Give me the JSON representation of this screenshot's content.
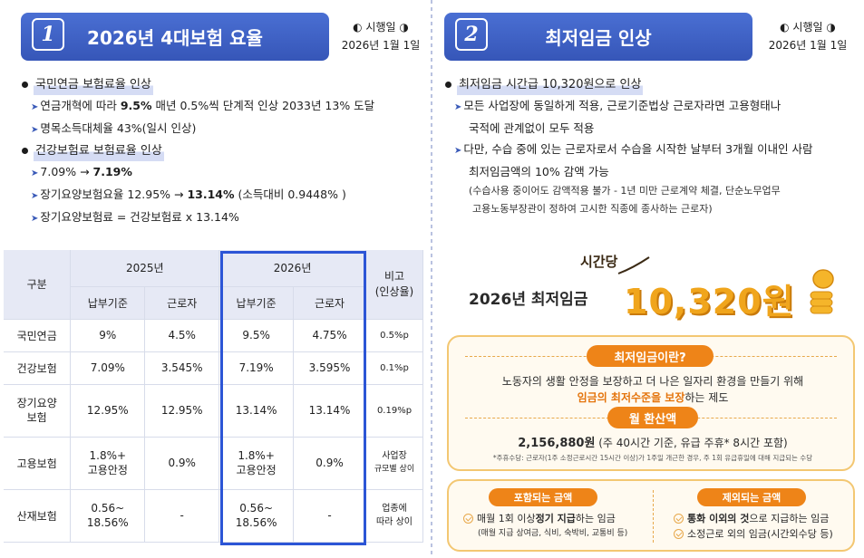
{
  "left": {
    "number": "1",
    "title": "2026년 4대보험 요율",
    "effective_label": "◐ 시행일 ◑",
    "effective_date": "2026년 1월 1일",
    "bullets": [
      {
        "text": "국민연금 보험료율 인상",
        "subs": [
          {
            "pre": "연금개혁에 따라 ",
            "em": "9.5%",
            "post": " 매년 0.5%씩 단계적 인상 2033년 13% 도달"
          },
          {
            "pre": "명목소득대체율 43%(일시 인상)",
            "em": "",
            "post": ""
          }
        ]
      },
      {
        "text": "건강보험료 보험료율 인상",
        "subs": [
          {
            "pre": "7.09% → ",
            "em": "7.19%",
            "post": ""
          },
          {
            "pre": "장기요양보험요율 12.95% → ",
            "em": "13.14%",
            "post": " (소득대비 0.9448% )"
          },
          {
            "pre": "장기요양보험료 = 건강보험료  x 13.14%",
            "em": "",
            "post": ""
          }
        ]
      }
    ],
    "table": {
      "h_gubun": "구분",
      "h_2025": "2025년",
      "h_2026": "2026년",
      "h_note": "비고\n(인상율)",
      "h_pay": "납부기준",
      "h_worker": "근로자",
      "rows": [
        {
          "name": "국민연금",
          "a": "9%",
          "b": "4.5%",
          "c": "9.5%",
          "d": "4.75%",
          "note": "0.5%p",
          "note2": ""
        },
        {
          "name": "건강보험",
          "a": "7.09%",
          "b": "3.545%",
          "c": "7.19%",
          "d": "3.595%",
          "note": "0.1%p",
          "note2": ""
        },
        {
          "name": "장기요양\n보험",
          "a": "12.95%",
          "b": "12.95%",
          "c": "13.14%",
          "d": "13.14%",
          "note": "0.19%p",
          "note2": ""
        },
        {
          "name": "고용보험",
          "a": "1.8%+\n고용안정",
          "b": "0.9%",
          "c": "1.8%+\n고용안정",
          "d": "0.9%",
          "note": "사업장",
          "note2": "규모별 상이"
        },
        {
          "name": "산재보험",
          "a": "0.56~\n18.56%",
          "b": "-",
          "c": "0.56~\n18.56%",
          "d": "-",
          "note": "업종에\n따라 상이",
          "note2": ""
        }
      ]
    }
  },
  "right": {
    "number": "2",
    "title": "최저임금 인상",
    "effective_label": "◐ 시행일 ◑",
    "effective_date": "2026년 1월 1일",
    "bullet": "최저임금 시간급 10,320원으로 인상",
    "subs": [
      "모든 사업장에 동일하게 적용, 근로기준법상 근로자라면 고용형태나",
      "국적에 관계없이 모두 적용",
      "다만, 수습 중에 있는 근로자로서 수습을 시작한 날부터 3개월 이내인 사람",
      "최저임금액의 10% 감액 가능"
    ],
    "small1": "(수습사용 중이어도 감액적용 불가 - 1년 미만 근로계약 체결, 단순노무업무",
    "small2": "고용노동부장관이  정하여 고시한 직종에 종사하는 근로자)",
    "per_hour": "시간당",
    "year_label": "2026년 최저임금",
    "amount": "10,320원",
    "what_title": "최저임금이란?",
    "what_line1": "노동자의 생활 안정을 보장하고 더 나은 일자리 환경을 만들기 위해",
    "what_line2_em": "임금의 최저수준을 보장",
    "what_line2_post": "하는 제도",
    "monthly_title": "월 환산액",
    "monthly_amount": "2,156,880원",
    "monthly_detail": " (주 40시간 기준, 유급 주휴* 8시간 포함)",
    "monthly_note": "*주휴수당: 근로자(1주 소정근로시간 15시간 이상)가 1주일 개근한 경우, 주 1회 유급휴일에 대해 지급되는 수당",
    "inc_title": "포함되는 금액",
    "inc_pre": "매월 1회 이상 ",
    "inc_em": "정기 지급",
    "inc_post": "하는 임금",
    "inc_sub": "(매월 지급 상여금, 식비, 숙박비, 교통비 등)",
    "exc_title": "제외되는 금액",
    "exc_em": "통화 이외의 것",
    "exc_post": "으로 지급하는 임금",
    "exc_2": "소정근로 외의 임금(시간외수당 등)"
  },
  "colors": {
    "accent_blue": "#3656b8",
    "orange": "#ee8418",
    "gold": "#f0a51c"
  }
}
